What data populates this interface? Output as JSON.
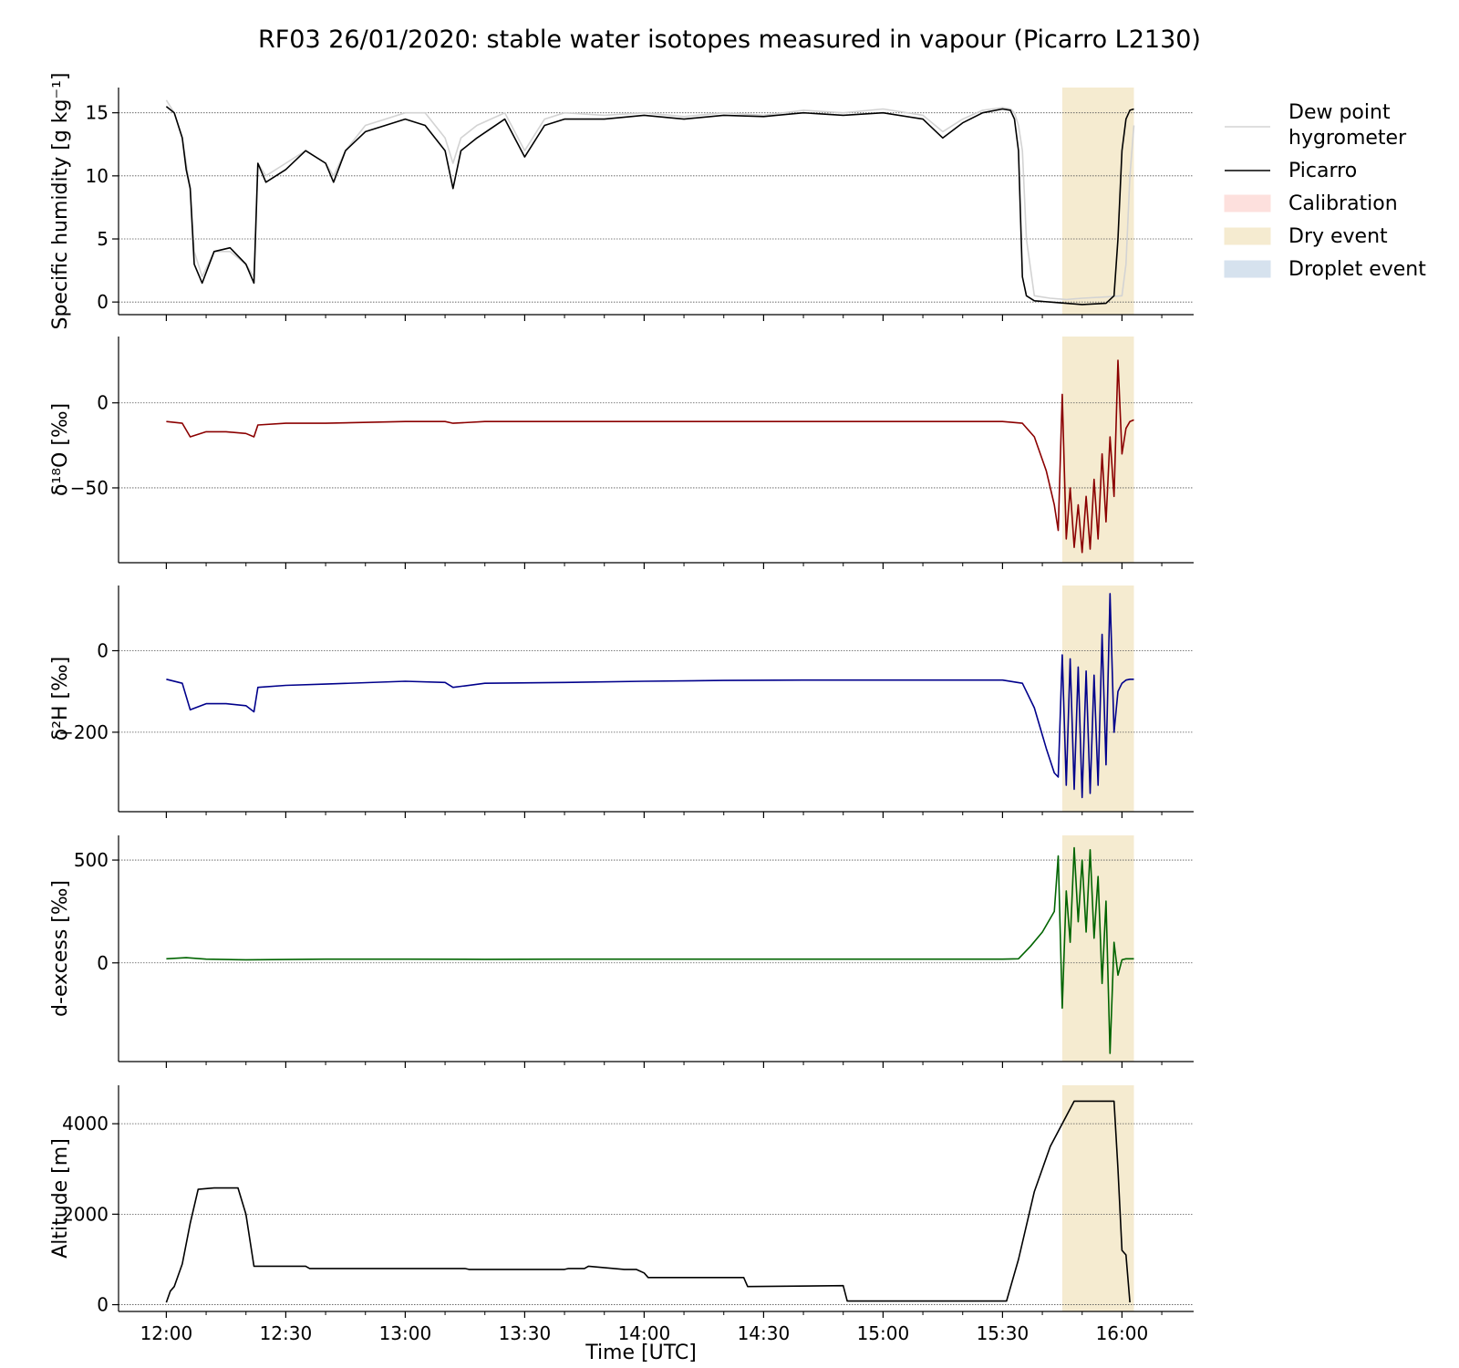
{
  "figure": {
    "title": "RF03 26/01/2020: stable water isotopes measured in vapour (Picarro L2130)",
    "xlabel": "Time [UTC]"
  },
  "legend": {
    "items": [
      {
        "key": "dewpoint",
        "label_lines": [
          "Dew point",
          "hygrometer"
        ],
        "kind": "line",
        "color": "#d3d3d3"
      },
      {
        "key": "picarro",
        "label_lines": [
          "Picarro"
        ],
        "kind": "line",
        "color": "#000000"
      },
      {
        "key": "calibration",
        "label_lines": [
          "Calibration"
        ],
        "kind": "patch",
        "color": "#fde0dd"
      },
      {
        "key": "dry",
        "label_lines": [
          "Dry event"
        ],
        "kind": "patch",
        "color": "#f5ebd0"
      },
      {
        "key": "droplet",
        "label_lines": [
          "Droplet event"
        ],
        "kind": "patch",
        "color": "#d6e2ee"
      }
    ]
  },
  "chart_data": [
    {
      "type": "line",
      "ylabel": "Specific humidity [g kg⁻¹]",
      "ylim": [
        -1,
        17
      ],
      "yticks": [
        0,
        5,
        10,
        15
      ],
      "grid": "y",
      "xlim_minutes": [
        -12,
        258
      ],
      "xticks": [
        {
          "t": 0,
          "label": "12:00"
        },
        {
          "t": 30,
          "label": "12:30"
        },
        {
          "t": 60,
          "label": "13:00"
        },
        {
          "t": 90,
          "label": "13:30"
        },
        {
          "t": 120,
          "label": "14:00"
        },
        {
          "t": 150,
          "label": "14:30"
        },
        {
          "t": 180,
          "label": "15:00"
        },
        {
          "t": 210,
          "label": "15:30"
        },
        {
          "t": 240,
          "label": "16:00"
        }
      ],
      "dry_event_minutes": [
        225,
        243
      ],
      "series": [
        {
          "name": "Dew point hygrometer",
          "color": "#d3d3d3",
          "x": [
            0,
            2,
            4,
            5,
            6,
            7,
            9,
            12,
            16,
            20,
            22,
            23,
            25,
            30,
            35,
            40,
            42,
            45,
            50,
            55,
            60,
            65,
            70,
            72,
            74,
            78,
            85,
            90,
            95,
            100,
            110,
            120,
            130,
            140,
            150,
            160,
            170,
            180,
            190,
            195,
            200,
            205,
            210,
            212,
            213,
            214,
            215,
            216,
            218,
            222,
            226,
            230,
            236,
            240,
            241,
            242,
            243
          ],
          "y": [
            16,
            15,
            13,
            11,
            9,
            4,
            2,
            4,
            4,
            3,
            2,
            11,
            10,
            11,
            12,
            11,
            10,
            12,
            14,
            14.5,
            15,
            15,
            13,
            11,
            13,
            14,
            15,
            12,
            14.5,
            15,
            14.8,
            15,
            14.7,
            15,
            14.8,
            15.2,
            15,
            15.3,
            14.8,
            13.5,
            14.5,
            15.2,
            15.4,
            15.3,
            15,
            14,
            12,
            5,
            0.5,
            0.3,
            0.2,
            0.3,
            0.4,
            0.5,
            3,
            10,
            14
          ]
        },
        {
          "name": "Picarro",
          "color": "#000000",
          "x": [
            0,
            2,
            4,
            5,
            6,
            7,
            9,
            12,
            16,
            20,
            22,
            23,
            25,
            30,
            35,
            40,
            42,
            45,
            50,
            55,
            60,
            65,
            70,
            72,
            74,
            78,
            85,
            90,
            95,
            100,
            110,
            120,
            130,
            140,
            150,
            160,
            170,
            180,
            190,
            195,
            200,
            205,
            210,
            212,
            213,
            214,
            215,
            216,
            218,
            222,
            226,
            230,
            236,
            238,
            239,
            240,
            241,
            242,
            243
          ],
          "y": [
            15.5,
            15,
            13,
            10.5,
            9,
            3,
            1.5,
            4,
            4.3,
            3,
            1.5,
            11,
            9.5,
            10.5,
            12,
            11,
            9.5,
            12,
            13.5,
            14,
            14.5,
            14,
            12,
            9,
            12,
            13,
            14.5,
            11.5,
            14,
            14.5,
            14.5,
            14.8,
            14.5,
            14.8,
            14.7,
            15,
            14.8,
            15,
            14.5,
            13,
            14.2,
            15,
            15.3,
            15.2,
            14.5,
            12,
            2,
            0.5,
            0.1,
            0,
            -0.1,
            -0.2,
            -0.1,
            0.5,
            5,
            12,
            14.5,
            15.2,
            15.3
          ]
        }
      ]
    },
    {
      "type": "line",
      "ylabel": "δ¹⁸O [‰]",
      "ylim": [
        -94,
        39
      ],
      "yticks": [
        -50,
        0
      ],
      "grid": "y",
      "xlim_minutes": [
        -12,
        258
      ],
      "dry_event_minutes": [
        225,
        243
      ],
      "series": [
        {
          "name": "δ¹⁸O",
          "color": "#8b0000",
          "x": [
            0,
            4,
            6,
            10,
            15,
            20,
            22,
            23,
            30,
            40,
            60,
            70,
            72,
            80,
            100,
            120,
            140,
            160,
            180,
            200,
            210,
            215,
            218,
            221,
            223,
            224,
            225,
            226,
            227,
            228,
            229,
            230,
            231,
            232,
            233,
            234,
            235,
            236,
            237,
            238,
            239,
            240,
            241,
            242,
            243
          ],
          "y": [
            -11,
            -12,
            -20,
            -17,
            -17,
            -18,
            -20,
            -13,
            -12,
            -12,
            -11,
            -11,
            -12,
            -11,
            -11,
            -11,
            -11,
            -11,
            -11,
            -11,
            -11,
            -12,
            -20,
            -40,
            -60,
            -75,
            5,
            -80,
            -50,
            -85,
            -60,
            -88,
            -55,
            -86,
            -45,
            -80,
            -30,
            -70,
            -20,
            -55,
            25,
            -30,
            -15,
            -11,
            -10
          ]
        }
      ]
    },
    {
      "type": "line",
      "ylabel": "δ²H [‰]",
      "ylim": [
        -395,
        160
      ],
      "yticks": [
        -200,
        0
      ],
      "grid": "y",
      "xlim_minutes": [
        -12,
        258
      ],
      "dry_event_minutes": [
        225,
        243
      ],
      "series": [
        {
          "name": "δ²H",
          "color": "#00008b",
          "x": [
            0,
            4,
            6,
            10,
            15,
            20,
            22,
            23,
            30,
            40,
            60,
            70,
            72,
            80,
            100,
            120,
            140,
            160,
            180,
            200,
            210,
            215,
            218,
            221,
            223,
            224,
            225,
            226,
            227,
            228,
            229,
            230,
            231,
            232,
            233,
            234,
            235,
            236,
            237,
            238,
            239,
            240,
            241,
            242,
            243
          ],
          "y": [
            -70,
            -80,
            -145,
            -130,
            -130,
            -135,
            -150,
            -90,
            -85,
            -82,
            -75,
            -78,
            -90,
            -80,
            -78,
            -75,
            -73,
            -72,
            -72,
            -72,
            -72,
            -80,
            -140,
            -240,
            -300,
            -310,
            -10,
            -330,
            -20,
            -340,
            -40,
            -360,
            -50,
            -350,
            -60,
            -330,
            40,
            -280,
            140,
            -200,
            -100,
            -80,
            -72,
            -70,
            -70
          ]
        }
      ]
    },
    {
      "type": "line",
      "ylabel": "d-excess [‰]",
      "ylim": [
        -480,
        620
      ],
      "yticks": [
        0,
        500
      ],
      "grid": "y",
      "xlim_minutes": [
        -12,
        258
      ],
      "dry_event_minutes": [
        225,
        243
      ],
      "series": [
        {
          "name": "d-excess",
          "color": "#006400",
          "x": [
            0,
            5,
            10,
            20,
            40,
            60,
            80,
            100,
            120,
            140,
            160,
            180,
            200,
            210,
            214,
            217,
            220,
            223,
            224,
            225,
            226,
            227,
            228,
            229,
            230,
            231,
            232,
            233,
            234,
            235,
            236,
            237,
            238,
            239,
            240,
            241,
            242,
            243
          ],
          "y": [
            20,
            25,
            18,
            15,
            18,
            18,
            17,
            18,
            18,
            18,
            18,
            18,
            18,
            18,
            20,
            80,
            150,
            250,
            520,
            -220,
            350,
            100,
            560,
            200,
            500,
            150,
            550,
            120,
            420,
            -100,
            300,
            -440,
            100,
            -60,
            15,
            20,
            20,
            20
          ]
        }
      ]
    },
    {
      "type": "line",
      "ylabel": "Altitude [m]",
      "ylim": [
        -150,
        4850
      ],
      "yticks": [
        0,
        2000,
        4000
      ],
      "grid": "y",
      "xlim_minutes": [
        -12,
        258
      ],
      "dry_event_minutes": [
        225,
        243
      ],
      "series": [
        {
          "name": "Altitude",
          "color": "#000000",
          "x": [
            0,
            1,
            2,
            4,
            6,
            8,
            12,
            18,
            20,
            22,
            35,
            36,
            55,
            56,
            75,
            76,
            100,
            101,
            105,
            106,
            115,
            116,
            118,
            120,
            121,
            135,
            145,
            146,
            170,
            171,
            190,
            200,
            210,
            211,
            214,
            218,
            222,
            228,
            230,
            232,
            233,
            235,
            236,
            238,
            239,
            240,
            241,
            242
          ],
          "y": [
            50,
            300,
            400,
            900,
            1800,
            2550,
            2580,
            2580,
            2000,
            850,
            850,
            800,
            800,
            800,
            800,
            780,
            780,
            800,
            800,
            850,
            780,
            780,
            780,
            700,
            600,
            600,
            600,
            400,
            420,
            80,
            80,
            80,
            80,
            80,
            1000,
            2500,
            3500,
            4500,
            4500,
            4500,
            4500,
            4500,
            4500,
            4500,
            3000,
            1200,
            1100,
            50
          ]
        }
      ]
    }
  ]
}
